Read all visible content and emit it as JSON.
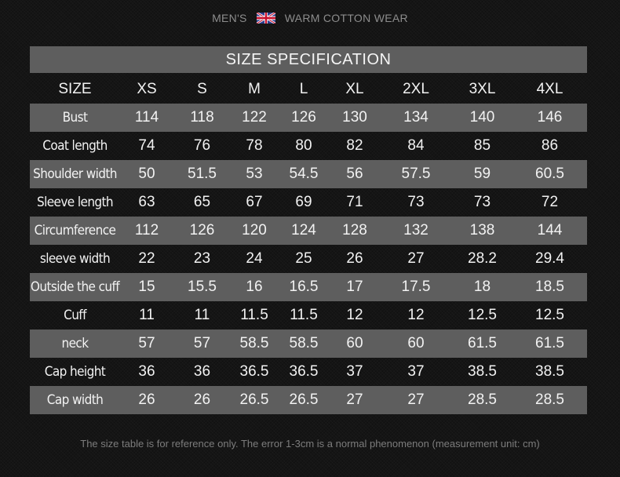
{
  "header": {
    "left_text": "MEN'S",
    "right_text": "WARM COTTON WEAR",
    "flag_icon": "uk-flag-icon"
  },
  "table": {
    "title": "SIZE SPECIFICATION",
    "corner_label": "SIZE",
    "sizes": [
      "XS",
      "S",
      "M",
      "L",
      "XL",
      "2XL",
      "3XL",
      "4XL"
    ],
    "rows": [
      {
        "label": "Bust",
        "values": [
          "114",
          "118",
          "122",
          "126",
          "130",
          "134",
          "140",
          "146"
        ]
      },
      {
        "label": "Coat length",
        "values": [
          "74",
          "76",
          "78",
          "80",
          "82",
          "84",
          "85",
          "86"
        ]
      },
      {
        "label": "Shoulder width",
        "values": [
          "50",
          "51.5",
          "53",
          "54.5",
          "56",
          "57.5",
          "59",
          "60.5"
        ]
      },
      {
        "label": "Sleeve length",
        "values": [
          "63",
          "65",
          "67",
          "69",
          "71",
          "73",
          "73",
          "72"
        ]
      },
      {
        "label": "Circumference",
        "values": [
          "112",
          "126",
          "120",
          "124",
          "128",
          "132",
          "138",
          "144"
        ]
      },
      {
        "label": "sleeve width",
        "values": [
          "22",
          "23",
          "24",
          "25",
          "26",
          "27",
          "28.2",
          "29.4"
        ]
      },
      {
        "label": "Outside the cuff",
        "values": [
          "15",
          "15.5",
          "16",
          "16.5",
          "17",
          "17.5",
          "18",
          "18.5"
        ]
      },
      {
        "label": "Cuff",
        "values": [
          "11",
          "11",
          "11.5",
          "11.5",
          "12",
          "12",
          "12.5",
          "12.5"
        ]
      },
      {
        "label": "neck",
        "values": [
          "57",
          "57",
          "58.5",
          "58.5",
          "60",
          "60",
          "61.5",
          "61.5"
        ]
      },
      {
        "label": "Cap height",
        "values": [
          "36",
          "36",
          "36.5",
          "36.5",
          "37",
          "37",
          "38.5",
          "38.5"
        ]
      },
      {
        "label": "Cap width",
        "values": [
          "26",
          "26",
          "26.5",
          "26.5",
          "27",
          "27",
          "28.5",
          "28.5"
        ]
      }
    ]
  },
  "footnote": "The size table is for reference only. The error 1-3cm is a normal phenomenon (measurement unit: cm)",
  "colors": {
    "background": "#151515",
    "band": "#5e5e5e",
    "text": "#f2f2f2",
    "muted_text": "#8d8d8d"
  }
}
